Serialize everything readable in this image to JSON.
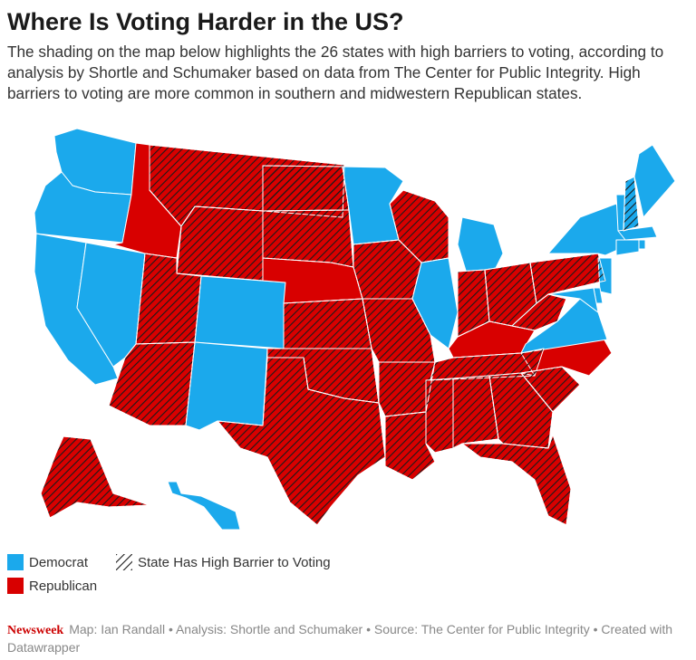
{
  "title": "Where Is Voting Harder in the US?",
  "subtitle": "The shading on the map below highlights the 26 states with high barriers to voting, according to analysis by Shortle and Schumaker based on data from The Center for Public Integrity. High barriers to voting are more common in southern and midwestern Republican states.",
  "colors": {
    "democrat": "#1ba9ec",
    "republican": "#d80000",
    "hatch": "#1a1a1a",
    "border": "#ffffff"
  },
  "legend": {
    "democrat": "Democrat",
    "republican": "Republican",
    "high_barrier": "State Has High Barrier to Voting"
  },
  "footer": {
    "brand": "Newsweek",
    "credits": "Map: Ian Randall • Analysis: Shortle and Schumaker • Source: The Center for Public Integrity • Created with Datawrapper"
  },
  "states": [
    {
      "abbr": "WA",
      "party": "D",
      "high_barrier": false
    },
    {
      "abbr": "OR",
      "party": "D",
      "high_barrier": false
    },
    {
      "abbr": "CA",
      "party": "D",
      "high_barrier": false
    },
    {
      "abbr": "NV",
      "party": "D",
      "high_barrier": false
    },
    {
      "abbr": "ID",
      "party": "R",
      "high_barrier": false
    },
    {
      "abbr": "MT",
      "party": "R",
      "high_barrier": true
    },
    {
      "abbr": "WY",
      "party": "R",
      "high_barrier": true
    },
    {
      "abbr": "UT",
      "party": "R",
      "high_barrier": true
    },
    {
      "abbr": "AZ",
      "party": "R",
      "high_barrier": true
    },
    {
      "abbr": "CO",
      "party": "D",
      "high_barrier": false
    },
    {
      "abbr": "NM",
      "party": "D",
      "high_barrier": false
    },
    {
      "abbr": "ND",
      "party": "R",
      "high_barrier": true
    },
    {
      "abbr": "SD",
      "party": "R",
      "high_barrier": true
    },
    {
      "abbr": "NE",
      "party": "R",
      "high_barrier": false
    },
    {
      "abbr": "KS",
      "party": "R",
      "high_barrier": true
    },
    {
      "abbr": "OK",
      "party": "R",
      "high_barrier": true
    },
    {
      "abbr": "TX",
      "party": "R",
      "high_barrier": true
    },
    {
      "abbr": "MN",
      "party": "D",
      "high_barrier": false
    },
    {
      "abbr": "IA",
      "party": "R",
      "high_barrier": true
    },
    {
      "abbr": "MO",
      "party": "R",
      "high_barrier": true
    },
    {
      "abbr": "AR",
      "party": "R",
      "high_barrier": true
    },
    {
      "abbr": "LA",
      "party": "R",
      "high_barrier": true
    },
    {
      "abbr": "WI",
      "party": "R",
      "high_barrier": true
    },
    {
      "abbr": "IL",
      "party": "D",
      "high_barrier": false
    },
    {
      "abbr": "MI",
      "party": "D",
      "high_barrier": false
    },
    {
      "abbr": "IN",
      "party": "R",
      "high_barrier": true
    },
    {
      "abbr": "OH",
      "party": "R",
      "high_barrier": true
    },
    {
      "abbr": "KY",
      "party": "R",
      "high_barrier": false
    },
    {
      "abbr": "TN",
      "party": "R",
      "high_barrier": true
    },
    {
      "abbr": "MS",
      "party": "R",
      "high_barrier": true
    },
    {
      "abbr": "AL",
      "party": "R",
      "high_barrier": true
    },
    {
      "abbr": "GA",
      "party": "R",
      "high_barrier": true
    },
    {
      "abbr": "FL",
      "party": "R",
      "high_barrier": true
    },
    {
      "abbr": "SC",
      "party": "R",
      "high_barrier": true
    },
    {
      "abbr": "NC",
      "party": "R",
      "high_barrier": false
    },
    {
      "abbr": "VA",
      "party": "D",
      "high_barrier": false
    },
    {
      "abbr": "WV",
      "party": "R",
      "high_barrier": true
    },
    {
      "abbr": "PA",
      "party": "R",
      "high_barrier": true
    },
    {
      "abbr": "NY",
      "party": "D",
      "high_barrier": false
    },
    {
      "abbr": "VT",
      "party": "D",
      "high_barrier": false
    },
    {
      "abbr": "NH",
      "party": "D",
      "high_barrier": true
    },
    {
      "abbr": "ME",
      "party": "D",
      "high_barrier": false
    },
    {
      "abbr": "MA",
      "party": "D",
      "high_barrier": false
    },
    {
      "abbr": "RI",
      "party": "D",
      "high_barrier": false
    },
    {
      "abbr": "CT",
      "party": "D",
      "high_barrier": false
    },
    {
      "abbr": "NJ",
      "party": "D",
      "high_barrier": false
    },
    {
      "abbr": "DE",
      "party": "D",
      "high_barrier": false
    },
    {
      "abbr": "MD",
      "party": "D",
      "high_barrier": false
    },
    {
      "abbr": "AK",
      "party": "R",
      "high_barrier": true
    },
    {
      "abbr": "HI",
      "party": "D",
      "high_barrier": false
    }
  ]
}
